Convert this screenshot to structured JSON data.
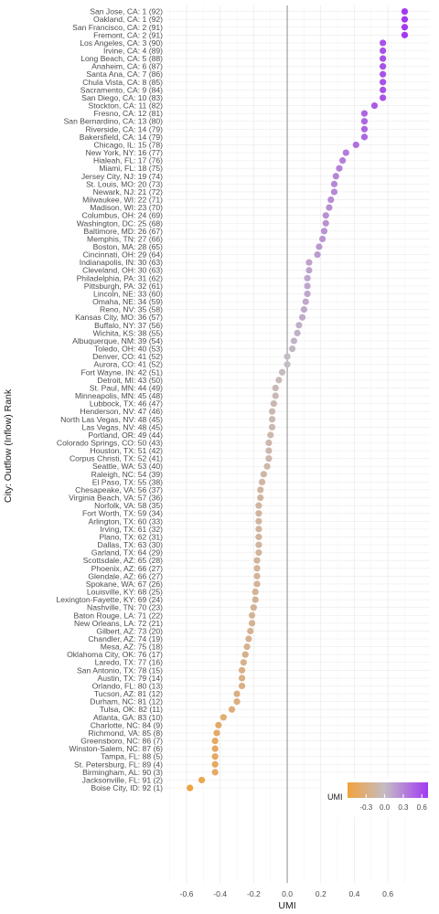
{
  "chart_data": {
    "type": "scatter",
    "title": "",
    "xlabel": "UMI",
    "ylabel": "City: Outflow (Inflow) Rank",
    "xlim": [
      -0.72,
      0.85
    ],
    "xticks": [
      -0.6,
      -0.4,
      -0.2,
      0.0,
      0.2,
      0.4,
      0.6
    ],
    "xtick_labels": [
      "-0.6",
      "-0.4",
      "-0.2",
      "0.0",
      "0.2",
      "0.4",
      "0.6"
    ],
    "reference_line_x": 0,
    "grid": true,
    "legend": {
      "title": "UMI",
      "position": "bottom-right",
      "ticks": [
        "-0.3",
        "0.0",
        "0.3",
        "0.6"
      ],
      "tick_values": [
        -0.3,
        0.0,
        0.3,
        0.6
      ],
      "range": [
        -0.6,
        0.7
      ]
    },
    "colors": {
      "low": "#f2a23c",
      "mid": "#c4bcc4",
      "high": "#a23af2",
      "zero_line": "#a0a0a0"
    },
    "points": [
      {
        "label": "San Jose, CA: 1 (92)",
        "x": 0.7
      },
      {
        "label": "Oakland, CA: 1 (92)",
        "x": 0.7
      },
      {
        "label": "San Francisco, CA: 2 (91)",
        "x": 0.7
      },
      {
        "label": "Fremont, CA: 2 (91)",
        "x": 0.7
      },
      {
        "label": "Los Angeles, CA: 3 (90)",
        "x": 0.57
      },
      {
        "label": "Irvine, CA: 4 (89)",
        "x": 0.57
      },
      {
        "label": "Long Beach, CA: 5 (88)",
        "x": 0.57
      },
      {
        "label": "Anaheim, CA: 6 (87)",
        "x": 0.57
      },
      {
        "label": "Santa Ana, CA: 7 (86)",
        "x": 0.57
      },
      {
        "label": "Chula Vista, CA: 8 (85)",
        "x": 0.57
      },
      {
        "label": "Sacramento, CA: 9 (84)",
        "x": 0.57
      },
      {
        "label": "San Diego, CA: 10 (83)",
        "x": 0.57
      },
      {
        "label": "Stockton, CA: 11 (82)",
        "x": 0.52
      },
      {
        "label": "Fresno, CA: 12 (81)",
        "x": 0.46
      },
      {
        "label": "San Bernardino, CA: 13 (80)",
        "x": 0.46
      },
      {
        "label": "Riverside, CA: 14 (79)",
        "x": 0.46
      },
      {
        "label": "Bakersfield, CA: 14 (79)",
        "x": 0.46
      },
      {
        "label": "Chicago, IL: 15 (78)",
        "x": 0.41
      },
      {
        "label": "New York, NY: 16 (77)",
        "x": 0.35
      },
      {
        "label": "Hialeah, FL: 17 (76)",
        "x": 0.33
      },
      {
        "label": "Miami, FL: 18 (75)",
        "x": 0.31
      },
      {
        "label": "Jersey City, NJ: 19 (74)",
        "x": 0.29
      },
      {
        "label": "St. Louis, MO: 20 (73)",
        "x": 0.28
      },
      {
        "label": "Newark, NJ: 21 (72)",
        "x": 0.28
      },
      {
        "label": "Milwaukee, WI: 22 (71)",
        "x": 0.26
      },
      {
        "label": "Madison, WI: 23 (70)",
        "x": 0.25
      },
      {
        "label": "Columbus, OH: 24 (69)",
        "x": 0.23
      },
      {
        "label": "Washington, DC: 25 (68)",
        "x": 0.23
      },
      {
        "label": "Baltimore, MD: 26 (67)",
        "x": 0.22
      },
      {
        "label": "Memphis, TN: 27 (66)",
        "x": 0.21
      },
      {
        "label": "Boston, MA: 28 (65)",
        "x": 0.19
      },
      {
        "label": "Cincinnati, OH: 29 (64)",
        "x": 0.18
      },
      {
        "label": "Indianapolis, IN: 30 (63)",
        "x": 0.13
      },
      {
        "label": "Cleveland, OH: 30 (63)",
        "x": 0.13
      },
      {
        "label": "Philadelphia, PA: 31 (62)",
        "x": 0.12
      },
      {
        "label": "Pittsburgh, PA: 32 (61)",
        "x": 0.12
      },
      {
        "label": "Lincoln, NE: 33 (60)",
        "x": 0.12
      },
      {
        "label": "Omaha, NE: 34 (59)",
        "x": 0.11
      },
      {
        "label": "Reno, NV: 35 (58)",
        "x": 0.1
      },
      {
        "label": "Kansas City, MO: 36 (57)",
        "x": 0.09
      },
      {
        "label": "Buffalo, NY: 37 (56)",
        "x": 0.07
      },
      {
        "label": "Wichita, KS: 38 (55)",
        "x": 0.06
      },
      {
        "label": "Albuquerque, NM: 39 (54)",
        "x": 0.04
      },
      {
        "label": "Toledo, OH: 40 (53)",
        "x": 0.03
      },
      {
        "label": "Denver, CO: 41 (52)",
        "x": 0.0
      },
      {
        "label": "Aurora, CO: 41 (52)",
        "x": 0.0
      },
      {
        "label": "Fort Wayne, IN: 42 (51)",
        "x": -0.03
      },
      {
        "label": "Detroit, MI: 43 (50)",
        "x": -0.05
      },
      {
        "label": "St. Paul, MN: 44 (49)",
        "x": -0.07
      },
      {
        "label": "Minneapolis, MN: 45 (48)",
        "x": -0.07
      },
      {
        "label": "Lubbock, TX: 46 (47)",
        "x": -0.08
      },
      {
        "label": "Henderson, NV: 47 (46)",
        "x": -0.09
      },
      {
        "label": "North Las Vegas, NV: 48 (45)",
        "x": -0.09
      },
      {
        "label": "Las Vegas, NV: 48 (45)",
        "x": -0.09
      },
      {
        "label": "Portland, OR: 49 (44)",
        "x": -0.1
      },
      {
        "label": "Colorado Springs, CO: 50 (43)",
        "x": -0.11
      },
      {
        "label": "Houston, TX: 51 (42)",
        "x": -0.11
      },
      {
        "label": "Corpus Christi, TX: 52 (41)",
        "x": -0.11
      },
      {
        "label": "Seattle, WA: 53 (40)",
        "x": -0.12
      },
      {
        "label": "Raleigh, NC: 54 (39)",
        "x": -0.14
      },
      {
        "label": "El Paso, TX: 55 (38)",
        "x": -0.15
      },
      {
        "label": "Chesapeake, VA: 56 (37)",
        "x": -0.16
      },
      {
        "label": "Virginia Beach, VA: 57 (36)",
        "x": -0.16
      },
      {
        "label": "Norfolk, VA: 58 (35)",
        "x": -0.17
      },
      {
        "label": "Fort Worth, TX: 59 (34)",
        "x": -0.17
      },
      {
        "label": "Arlington, TX: 60 (33)",
        "x": -0.17
      },
      {
        "label": "Irving, TX: 61 (32)",
        "x": -0.17
      },
      {
        "label": "Plano, TX: 62 (31)",
        "x": -0.17
      },
      {
        "label": "Dallas, TX: 63 (30)",
        "x": -0.17
      },
      {
        "label": "Garland, TX: 64 (29)",
        "x": -0.17
      },
      {
        "label": "Scottsdale, AZ: 65 (28)",
        "x": -0.18
      },
      {
        "label": "Phoenix, AZ: 66 (27)",
        "x": -0.18
      },
      {
        "label": "Glendale, AZ: 66 (27)",
        "x": -0.18
      },
      {
        "label": "Spokane, WA: 67 (26)",
        "x": -0.18
      },
      {
        "label": "Louisville, KY: 68 (25)",
        "x": -0.19
      },
      {
        "label": "Lexington-Fayette, KY: 69 (24)",
        "x": -0.19
      },
      {
        "label": "Nashville, TN: 70 (23)",
        "x": -0.2
      },
      {
        "label": "Baton Rouge, LA: 71 (22)",
        "x": -0.21
      },
      {
        "label": "New Orleans, LA: 72 (21)",
        "x": -0.21
      },
      {
        "label": "Gilbert, AZ: 73 (20)",
        "x": -0.22
      },
      {
        "label": "Chandler, AZ: 74 (19)",
        "x": -0.23
      },
      {
        "label": "Mesa, AZ: 75 (18)",
        "x": -0.24
      },
      {
        "label": "Oklahoma City, OK: 76 (17)",
        "x": -0.25
      },
      {
        "label": "Laredo, TX: 77 (16)",
        "x": -0.26
      },
      {
        "label": "San Antonio, TX: 78 (15)",
        "x": -0.27
      },
      {
        "label": "Austin, TX: 79 (14)",
        "x": -0.27
      },
      {
        "label": "Orlando, FL: 80 (13)",
        "x": -0.27
      },
      {
        "label": "Tucson, AZ: 81 (12)",
        "x": -0.3
      },
      {
        "label": "Durham, NC: 81 (12)",
        "x": -0.3
      },
      {
        "label": "Tulsa, OK: 82 (11)",
        "x": -0.33
      },
      {
        "label": "Atlanta, GA: 83 (10)",
        "x": -0.38
      },
      {
        "label": "Charlotte, NC: 84 (9)",
        "x": -0.41
      },
      {
        "label": "Richmond, VA: 85 (8)",
        "x": -0.42
      },
      {
        "label": "Greensboro, NC: 86 (7)",
        "x": -0.43
      },
      {
        "label": "Winston-Salem, NC: 87 (6)",
        "x": -0.43
      },
      {
        "label": "Tampa, FL: 88 (5)",
        "x": -0.43
      },
      {
        "label": "St. Petersburg, FL: 89 (4)",
        "x": -0.43
      },
      {
        "label": "Birmingham, AL: 90 (3)",
        "x": -0.43
      },
      {
        "label": "Jacksonville, FL: 91 (2)",
        "x": -0.51
      },
      {
        "label": "Boise City, ID: 92 (1)",
        "x": -0.58
      }
    ]
  }
}
